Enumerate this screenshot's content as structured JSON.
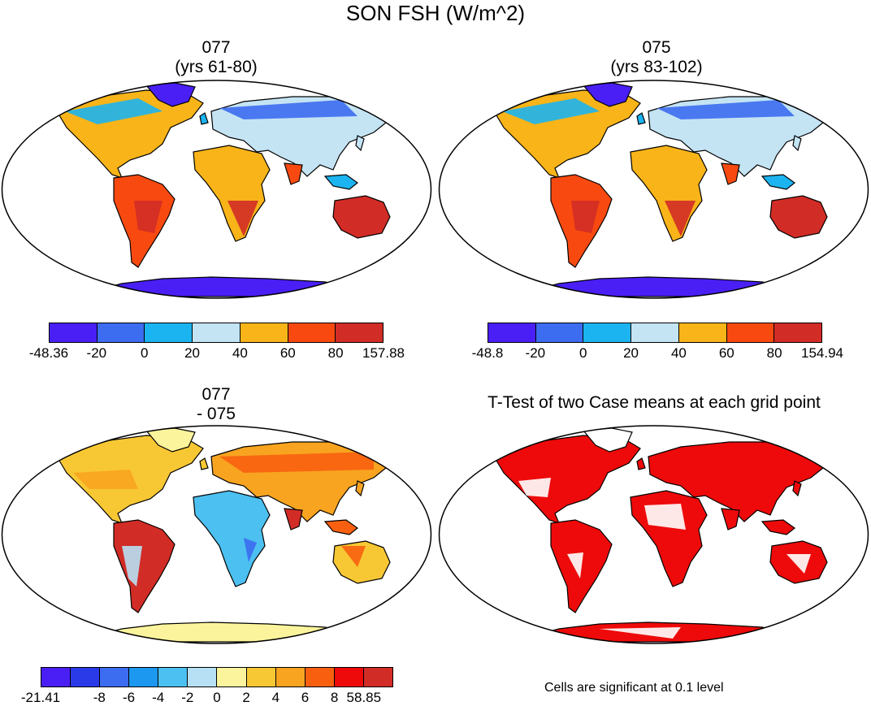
{
  "figure": {
    "title": "SON FSH (W/m^2)"
  },
  "panels": [
    {
      "id": "p1",
      "title_line1": "077",
      "title_line2": "(yrs 61-80)",
      "colors": [
        "#4a1ff5",
        "#3c6cf0",
        "#1cb4f0",
        "#c4e4f4",
        "#f8b418",
        "#f84a10",
        "#d22c26"
      ],
      "tick_labels": [
        "-48.36",
        "-20",
        "0",
        "20",
        "40",
        "60",
        "80",
        "157.88"
      ]
    },
    {
      "id": "p2",
      "title_line1": "075",
      "title_line2": "(yrs 83-102)",
      "colors": [
        "#4a1ff5",
        "#3c6cf0",
        "#1cb4f0",
        "#c4e4f4",
        "#f8b418",
        "#f84a10",
        "#d22c26"
      ],
      "tick_labels": [
        "-48.8",
        "-20",
        "0",
        "20",
        "40",
        "60",
        "80",
        "154.94"
      ]
    },
    {
      "id": "p3",
      "title_line1": "077",
      "title_line2": "- 075",
      "colors": [
        "#4a1ff5",
        "#2a3ae8",
        "#3c6cf0",
        "#1c98f0",
        "#4cc0f0",
        "#b8e0f4",
        "#fcf49c",
        "#f8c834",
        "#f8a420",
        "#f86010",
        "#ee0a0a",
        "#d22c26"
      ],
      "tick_labels": [
        "-21.41",
        "-8",
        "-6",
        "-4",
        "-2",
        "0",
        "2",
        "4",
        "6",
        "8",
        "58.85"
      ]
    },
    {
      "id": "p4",
      "title_line1": "T-Test of two Case means at each grid point",
      "note": "Cells are significant at 0.1 level"
    }
  ]
}
